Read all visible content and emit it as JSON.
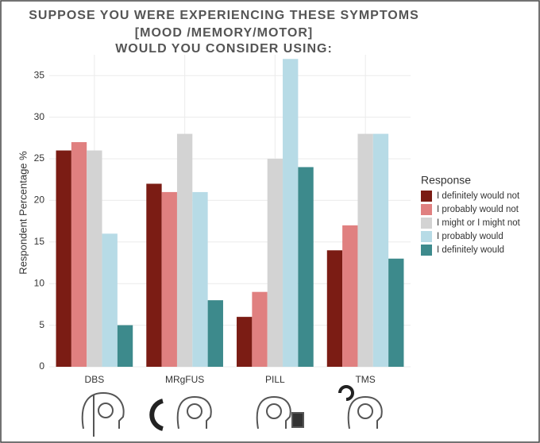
{
  "chart_data": {
    "type": "bar",
    "title": [
      "SUPPOSE YOU WERE EXPERIENCING THESE SYMPTOMS",
      "[MOOD /MEMORY/MOTOR]",
      "WOULD YOU CONSIDER USING:"
    ],
    "y_label": "Respondent Percentage %",
    "legend_title": "Response",
    "legend_position": "right",
    "categories": [
      "DBS",
      "MRgFUS",
      "PILL",
      "TMS"
    ],
    "series": [
      {
        "name": "I definitely would not",
        "color": "#7b1c14",
        "values": [
          26,
          22,
          6,
          14
        ]
      },
      {
        "name": "I probably would not",
        "color": "#e08080",
        "values": [
          27,
          21,
          9,
          17
        ]
      },
      {
        "name": "I might or I might not",
        "color": "#d3d3d3",
        "values": [
          26,
          28,
          25,
          28
        ]
      },
      {
        "name": "I probably would",
        "color": "#b7dbe6",
        "values": [
          16,
          21,
          37,
          28
        ]
      },
      {
        "name": "I definitely would",
        "color": "#3d8a8c",
        "values": [
          5,
          8,
          24,
          13
        ]
      }
    ],
    "ylim": [
      0,
      37.5
    ],
    "yticks": [
      0,
      5,
      10,
      15,
      20,
      25,
      30,
      35
    ],
    "grid": true
  }
}
